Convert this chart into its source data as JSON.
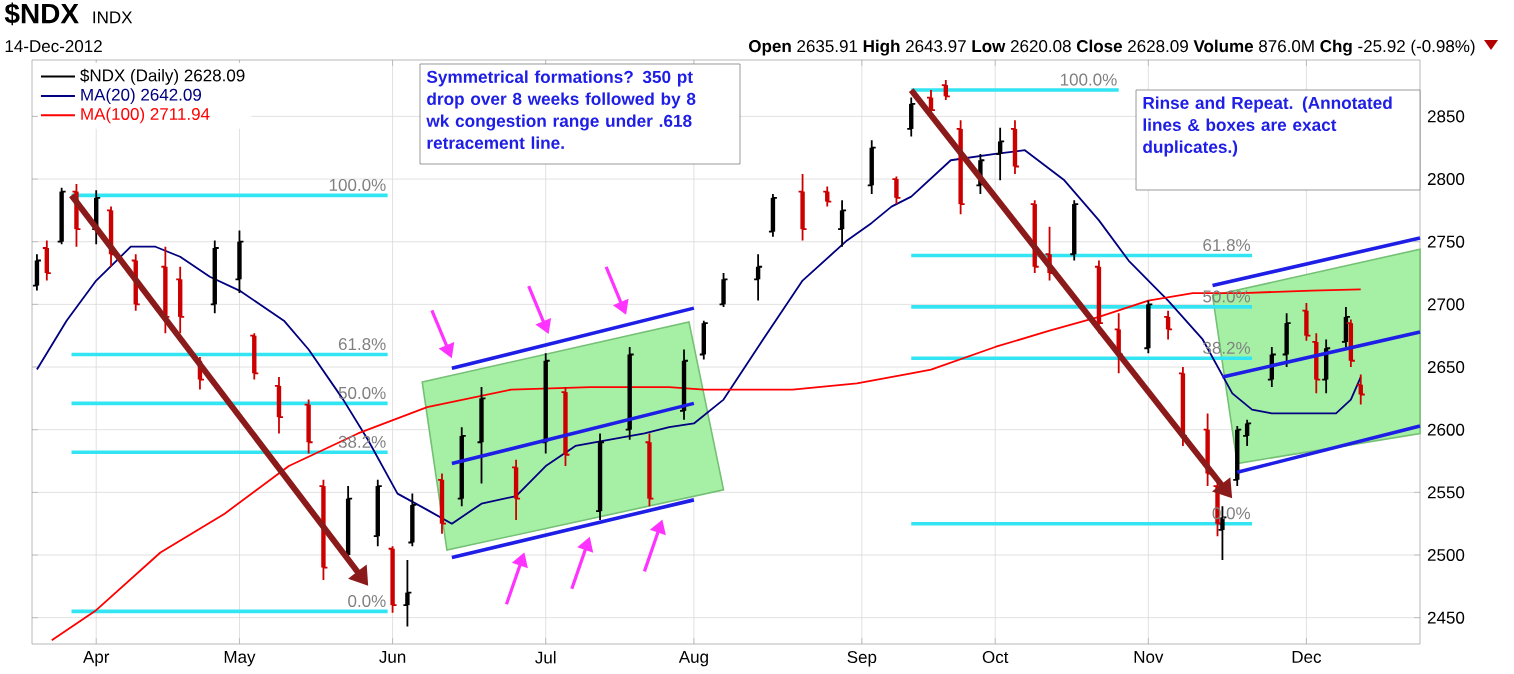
{
  "chart_data": {
    "type": "candlestick",
    "title": "$NDX",
    "subtitle": "INDX",
    "annotations": [
      "14-Dec-2012",
      "**Open** 2635.91 **High** 2643.97 **Low** 2620.08 **Close** 2628.09 **Volume** 876.0M **Chg** -25.92 (-0.98%)",
      "Symmetrical formations? 350 pt drop over 8 weeks followed by 8 wk congestion range under .618 retracement line.",
      "Rinse and Repeat. (Annotated lines & boxes are exact duplicates.)",
      {
        "text": "100.0%",
        "x": "2012-05-31",
        "y": 2787
      },
      {
        "text": "61.8%",
        "x": "2012-05-31",
        "y": 2660
      },
      {
        "text": "50.0%",
        "x": "2012-05-31",
        "y": 2621
      },
      {
        "text": "38.2%",
        "x": "2012-05-31",
        "y": 2582
      },
      {
        "text": "0.0%",
        "x": "2012-05-31",
        "y": 2455
      },
      {
        "text": "100.0%",
        "x": "2012-10-26",
        "y": 2871
      },
      {
        "text": "61.8%",
        "x": "2012-11-22",
        "y": 2739
      },
      {
        "text": "50.0%",
        "x": "2012-11-22",
        "y": 2698
      },
      {
        "text": "38.2%",
        "x": "2012-11-22",
        "y": 2657
      },
      {
        "text": "0.0%",
        "x": "2012-11-22",
        "y": 2525
      }
    ],
    "series": [
      {
        "name": "$NDX (Daily) 2628.09",
        "type": "candlestick",
        "x": [
          "2012-03-21",
          "2012-03-23",
          "2012-03-26",
          "2012-03-29",
          "2012-04-02",
          "2012-04-05",
          "2012-04-10",
          "2012-04-16",
          "2012-04-19",
          "2012-04-23",
          "2012-04-26",
          "2012-05-01",
          "2012-05-04",
          "2012-05-09",
          "2012-05-15",
          "2012-05-18",
          "2012-05-23",
          "2012-05-29",
          "2012-06-01",
          "2012-06-04",
          "2012-06-05",
          "2012-06-11",
          "2012-06-15",
          "2012-06-19",
          "2012-06-26",
          "2012-07-02",
          "2012-07-06",
          "2012-07-13",
          "2012-07-19",
          "2012-07-23",
          "2012-07-30",
          "2012-08-03",
          "2012-08-07",
          "2012-08-14",
          "2012-08-17",
          "2012-08-23",
          "2012-08-28",
          "2012-08-31",
          "2012-09-06",
          "2012-09-11",
          "2012-09-14",
          "2012-09-18",
          "2012-09-21",
          "2012-09-24",
          "2012-09-28",
          "2012-10-02",
          "2012-10-05",
          "2012-10-09",
          "2012-10-12",
          "2012-10-17",
          "2012-10-22",
          "2012-10-26",
          "2012-11-01",
          "2012-11-05",
          "2012-11-08",
          "2012-11-13",
          "2012-11-15",
          "2012-11-16",
          "2012-11-19",
          "2012-11-21",
          "2012-11-26",
          "2012-11-29",
          "2012-12-03",
          "2012-12-05",
          "2012-12-07",
          "2012-12-11",
          "2012-12-12",
          "2012-12-14"
        ],
        "ohlc": [
          [
            2715,
            2740,
            2711,
            2735
          ],
          [
            2745,
            2751,
            2719,
            2725
          ],
          [
            2750,
            2793,
            2748,
            2790
          ],
          [
            2790,
            2796,
            2746,
            2760
          ],
          [
            2760,
            2791,
            2748,
            2785
          ],
          [
            2775,
            2778,
            2730,
            2740
          ],
          [
            2735,
            2740,
            2695,
            2700
          ],
          [
            2730,
            2746,
            2677,
            2690
          ],
          [
            2720,
            2730,
            2677,
            2690
          ],
          [
            2655,
            2658,
            2632,
            2640
          ],
          [
            2700,
            2751,
            2693,
            2745
          ],
          [
            2720,
            2759,
            2709,
            2750
          ],
          [
            2675,
            2677,
            2640,
            2645
          ],
          [
            2635,
            2642,
            2597,
            2610
          ],
          [
            2620,
            2624,
            2581,
            2590
          ],
          [
            2555,
            2560,
            2480,
            2490
          ],
          [
            2500,
            2555,
            2496,
            2545
          ],
          [
            2515,
            2560,
            2507,
            2555
          ],
          [
            2505,
            2507,
            2454,
            2460
          ],
          [
            2460,
            2496,
            2443,
            2470
          ],
          [
            2510,
            2549,
            2507,
            2540
          ],
          [
            2560,
            2565,
            2517,
            2525
          ],
          [
            2545,
            2602,
            2539,
            2595
          ],
          [
            2590,
            2634,
            2557,
            2625
          ],
          [
            2570,
            2576,
            2528,
            2545
          ],
          [
            2590,
            2661,
            2581,
            2655
          ],
          [
            2630,
            2634,
            2571,
            2580
          ],
          [
            2535,
            2597,
            2528,
            2590
          ],
          [
            2600,
            2666,
            2592,
            2660
          ],
          [
            2590,
            2597,
            2539,
            2545
          ],
          [
            2615,
            2664,
            2608,
            2655
          ],
          [
            2660,
            2687,
            2656,
            2685
          ],
          [
            2700,
            2725,
            2698,
            2720
          ],
          [
            2720,
            2740,
            2703,
            2730
          ],
          [
            2758,
            2788,
            2754,
            2785
          ],
          [
            2790,
            2804,
            2751,
            2760
          ],
          [
            2790,
            2794,
            2778,
            2782
          ],
          [
            2760,
            2783,
            2746,
            2775
          ],
          [
            2795,
            2831,
            2788,
            2825
          ],
          [
            2800,
            2802,
            2780,
            2785
          ],
          [
            2840,
            2865,
            2834,
            2860
          ],
          [
            2865,
            2871,
            2849,
            2855
          ],
          [
            2875,
            2879,
            2863,
            2866
          ],
          [
            2840,
            2847,
            2772,
            2780
          ],
          [
            2795,
            2820,
            2788,
            2815
          ],
          [
            2820,
            2841,
            2799,
            2830
          ],
          [
            2840,
            2847,
            2804,
            2810
          ],
          [
            2780,
            2783,
            2725,
            2730
          ],
          [
            2740,
            2762,
            2719,
            2725
          ],
          [
            2740,
            2783,
            2735,
            2780
          ],
          [
            2730,
            2735,
            2677,
            2685
          ],
          [
            2680,
            2693,
            2645,
            2660
          ],
          [
            2665,
            2703,
            2661,
            2700
          ],
          [
            2690,
            2695,
            2672,
            2680
          ],
          [
            2645,
            2650,
            2587,
            2595
          ],
          [
            2600,
            2613,
            2555,
            2565
          ],
          [
            2555,
            2560,
            2515,
            2525
          ],
          [
            2520,
            2539,
            2496,
            2530
          ],
          [
            2560,
            2603,
            2555,
            2600
          ],
          [
            2595,
            2608,
            2587,
            2605
          ],
          [
            2640,
            2666,
            2634,
            2660
          ],
          [
            2660,
            2693,
            2650,
            2685
          ],
          [
            2695,
            2701,
            2671,
            2675
          ],
          [
            2670,
            2677,
            2629,
            2640
          ],
          [
            2640,
            2672,
            2629,
            2665
          ],
          [
            2670,
            2698,
            2666,
            2690
          ],
          [
            2685,
            2688,
            2650,
            2655
          ],
          [
            2635.91,
            2643.97,
            2620.08,
            2628.09
          ]
        ]
      },
      {
        "name": "MA(20) 2642.09",
        "type": "line",
        "color": "#000080",
        "x": [
          "2012-03-21",
          "2012-03-27",
          "2012-04-02",
          "2012-04-09",
          "2012-04-14",
          "2012-04-19",
          "2012-04-25",
          "2012-05-01",
          "2012-05-10",
          "2012-05-15",
          "2012-05-22",
          "2012-05-27",
          "2012-06-02",
          "2012-06-08",
          "2012-06-13",
          "2012-06-19",
          "2012-06-26",
          "2012-07-02",
          "2012-07-08",
          "2012-07-15",
          "2012-07-22",
          "2012-07-27",
          "2012-08-01",
          "2012-08-07",
          "2012-08-15",
          "2012-08-23",
          "2012-09-01",
          "2012-09-06",
          "2012-09-10",
          "2012-09-14",
          "2012-09-22",
          "2012-10-01",
          "2012-10-07",
          "2012-10-15",
          "2012-10-22",
          "2012-10-28",
          "2012-11-05",
          "2012-11-12",
          "2012-11-18",
          "2012-11-22",
          "2012-11-26",
          "2012-12-04",
          "2012-12-09",
          "2012-12-12",
          "2012-12-14"
        ],
        "values": [
          2648,
          2687,
          2719,
          2746,
          2746,
          2738,
          2722,
          2711,
          2687,
          2664,
          2624,
          2592,
          2549,
          2536,
          2525,
          2541,
          2547,
          2571,
          2587,
          2592,
          2597,
          2602,
          2605,
          2624,
          2672,
          2719,
          2751,
          2765,
          2778,
          2786,
          2815,
          2820,
          2823,
          2799,
          2767,
          2735,
          2703,
          2672,
          2629,
          2616,
          2613,
          2613,
          2613,
          2624,
          2642
        ]
      },
      {
        "name": "MA(100) 2711.94",
        "type": "line",
        "color": "#ff0000",
        "x": [
          "2012-03-24",
          "2012-04-02",
          "2012-04-15",
          "2012-04-28",
          "2012-05-11",
          "2012-05-25",
          "2012-06-08",
          "2012-06-25",
          "2012-07-11",
          "2012-07-27",
          "2012-08-03",
          "2012-08-21",
          "2012-09-03",
          "2012-09-14",
          "2012-09-18",
          "2012-10-01",
          "2012-10-12",
          "2012-10-22",
          "2012-11-01",
          "2012-11-10",
          "2012-11-20",
          "2012-12-04",
          "2012-12-14"
        ],
        "values": [
          2432,
          2456,
          2502,
          2533,
          2571,
          2597,
          2618,
          2632,
          2634,
          2634,
          2632,
          2632,
          2637,
          2645,
          2648,
          2666,
          2679,
          2690,
          2703,
          2709,
          2709,
          2711,
          2712
        ]
      },
      {
        "type": "line",
        "color": "#33e5f2",
        "x": [
          "2012-03-28",
          "2012-05-31"
        ],
        "values": [
          2787,
          2787
        ]
      },
      {
        "type": "line",
        "color": "#33e5f2",
        "x": [
          "2012-03-28",
          "2012-05-31"
        ],
        "values": [
          2660,
          2660
        ]
      },
      {
        "type": "line",
        "color": "#33e5f2",
        "x": [
          "2012-03-28",
          "2012-05-31"
        ],
        "values": [
          2621,
          2621
        ]
      },
      {
        "type": "line",
        "color": "#33e5f2",
        "x": [
          "2012-03-28",
          "2012-05-31"
        ],
        "values": [
          2582,
          2582
        ]
      },
      {
        "type": "line",
        "color": "#33e5f2",
        "x": [
          "2012-03-28",
          "2012-05-31"
        ],
        "values": [
          2455,
          2455
        ]
      },
      {
        "type": "line",
        "color": "#33e5f2",
        "x": [
          "2012-09-14",
          "2012-10-26"
        ],
        "values": [
          2871,
          2871
        ]
      },
      {
        "type": "line",
        "color": "#33e5f2",
        "x": [
          "2012-09-14",
          "2012-11-22"
        ],
        "values": [
          2739,
          2739
        ]
      },
      {
        "type": "line",
        "color": "#33e5f2",
        "x": [
          "2012-09-14",
          "2012-11-22"
        ],
        "values": [
          2698,
          2698
        ]
      },
      {
        "type": "line",
        "color": "#33e5f2",
        "x": [
          "2012-09-14",
          "2012-11-22"
        ],
        "values": [
          2657,
          2657
        ]
      },
      {
        "type": "line",
        "color": "#33e5f2",
        "x": [
          "2012-09-14",
          "2012-11-22"
        ],
        "values": [
          2525,
          2525
        ]
      },
      {
        "type": "line",
        "color": "#1e1ee6",
        "x": [
          "2012-06-13",
          "2012-08-01"
        ],
        "values": [
          2649,
          2697
        ]
      },
      {
        "type": "line",
        "color": "#1e1ee6",
        "x": [
          "2012-06-13",
          "2012-08-01"
        ],
        "values": [
          2573,
          2621
        ]
      },
      {
        "type": "line",
        "color": "#1e1ee6",
        "x": [
          "2012-06-13",
          "2012-08-01"
        ],
        "values": [
          2498,
          2544
        ]
      },
      {
        "type": "line",
        "color": "#1e1ee6",
        "x": [
          "2012-11-14",
          "2012-12-26"
        ],
        "values": [
          2715,
          2753
        ]
      },
      {
        "type": "line",
        "color": "#1e1ee6",
        "x": [
          "2012-11-16",
          "2012-12-26"
        ],
        "values": [
          2642,
          2678
        ]
      },
      {
        "type": "line",
        "color": "#1e1ee6",
        "x": [
          "2012-11-19",
          "2012-12-26"
        ],
        "values": [
          2566,
          2603
        ]
      },
      {
        "type": "area",
        "color": "#a6f0a6",
        "x": [
          "2012-06-07",
          "2012-07-31",
          "2012-08-07",
          "2012-06-12",
          null,
          "2012-11-14",
          "2012-12-26",
          "2012-12-26",
          "2012-11-19"
        ],
        "values": [
          2638,
          2686,
          2552,
          2504,
          null,
          2707,
          2744,
          2597,
          2573
        ]
      }
    ],
    "xlim": [
      "2012-03-20",
      "2012-12-26"
    ],
    "ylim": [
      2429,
      2895
    ],
    "xticks": [
      {
        "value": "2012-04-02",
        "label": "Apr"
      },
      {
        "value": "2012-05-01",
        "label": "May"
      },
      {
        "value": "2012-06-01",
        "label": "Jun"
      },
      {
        "value": "2012-07-02",
        "label": "Jul"
      },
      {
        "value": "2012-08-01",
        "label": "Aug"
      },
      {
        "value": "2012-09-04",
        "label": "Sep"
      },
      {
        "value": "2012-10-01",
        "label": "Oct"
      },
      {
        "value": "2012-11-01",
        "label": "Nov"
      },
      {
        "value": "2012-12-03",
        "label": "Dec"
      }
    ],
    "yticks": [
      2450,
      2500,
      2550,
      2600,
      2650,
      2700,
      2750,
      2800,
      2850
    ],
    "grid": true,
    "legend": "top left"
  }
}
